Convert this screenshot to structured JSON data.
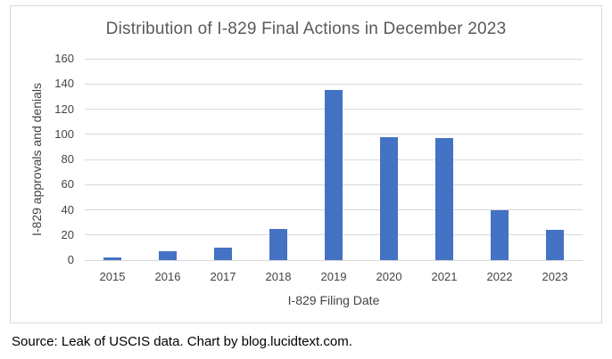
{
  "accent_colors": {
    "bar_fill": "#4472C4",
    "gridline": "#D9D9D9",
    "chart_border": "#D9D9D9",
    "title_text": "#595959",
    "axis_text": "#444444",
    "source_text": "#000000"
  },
  "source_note": "Source: Leak of USCIS data. Chart by blog.lucidtext.com.",
  "chart_data": {
    "type": "bar",
    "title": "Distribution of I-829 Final Actions in December 2023",
    "categories": [
      "2015",
      "2016",
      "2017",
      "2018",
      "2019",
      "2020",
      "2021",
      "2022",
      "2023"
    ],
    "values": [
      2,
      7,
      10,
      25,
      135,
      98,
      97,
      40,
      24
    ],
    "xlabel": "I-829 Filing Date",
    "ylabel": "I-829 approvals and denials",
    "ylim": [
      0,
      160
    ],
    "ytick_step": 20,
    "yticks": [
      0,
      20,
      40,
      60,
      80,
      100,
      120,
      140,
      160
    ],
    "grid": true,
    "legend": "none",
    "annotation": "Source: Leak of USCIS data. Chart by blog.lucidtext.com."
  }
}
